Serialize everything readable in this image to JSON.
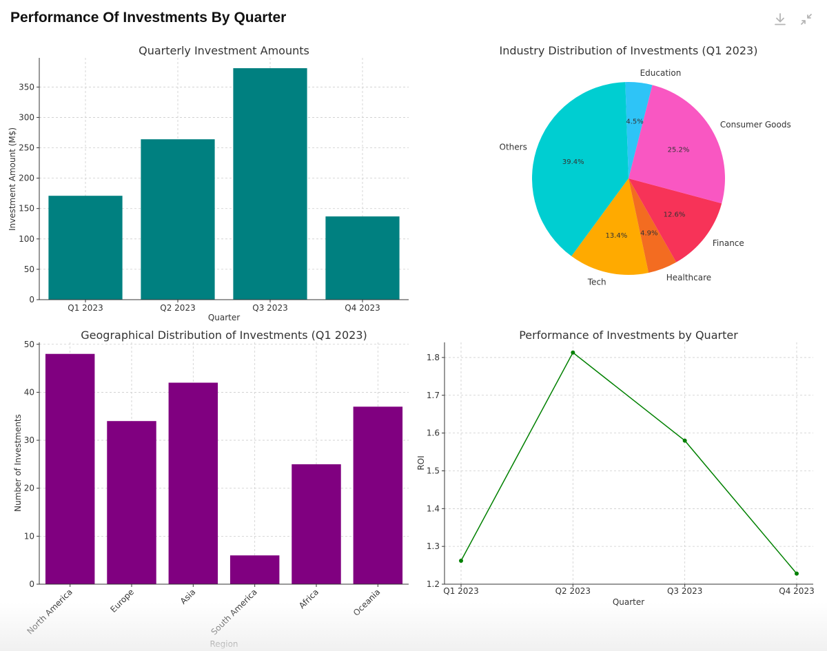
{
  "header": {
    "title": "Performance Of Investments By Quarter",
    "download_icon": "download-icon",
    "collapse_icon": "collapse-icon"
  },
  "colors": {
    "bar1": "#008080",
    "bar3": "#800080",
    "line": "#008000",
    "grid": "#cccccc",
    "axis": "#333333",
    "text": "#333333",
    "pie": [
      "#00CED1",
      "#FFAA00",
      "#F36C21",
      "#F73358",
      "#F957C2",
      "#2EC4F7"
    ]
  },
  "chart_data": [
    {
      "type": "bar",
      "title": "Quarterly Investment Amounts",
      "xlabel": "Quarter",
      "ylabel": "Investment Amount (M$)",
      "categories": [
        "Q1 2023",
        "Q2 2023",
        "Q3 2023",
        "Q4 2023"
      ],
      "values": [
        171,
        264,
        381,
        137
      ],
      "ylim": [
        0,
        398
      ],
      "yticks": [
        0,
        50,
        100,
        150,
        200,
        250,
        300,
        350
      ]
    },
    {
      "type": "pie",
      "title": "Industry Distribution of Investments (Q1 2023)",
      "labels": [
        "Others",
        "Tech",
        "Healthcare",
        "Finance",
        "Consumer Goods",
        "Education"
      ],
      "values": [
        39.4,
        13.4,
        4.9,
        12.6,
        25.2,
        4.5
      ],
      "pct_labels": [
        "39.4%",
        "13.4%",
        "4.9%",
        "12.6%",
        "25.2%",
        "4.5%"
      ]
    },
    {
      "type": "bar",
      "title": "Geographical Distribution of Investments (Q1 2023)",
      "xlabel": "Region",
      "ylabel": "Number of Investments",
      "categories": [
        "North America",
        "Europe",
        "Asia",
        "South America",
        "Africa",
        "Oceania"
      ],
      "values": [
        48,
        34,
        42,
        6,
        25,
        37
      ],
      "ylim": [
        0,
        50.4
      ],
      "yticks": [
        0,
        10,
        20,
        30,
        40,
        50
      ]
    },
    {
      "type": "line",
      "title": "Performance of Investments by Quarter",
      "xlabel": "Quarter",
      "ylabel": "ROI",
      "x": [
        "Q1 2023",
        "Q2 2023",
        "Q3 2023",
        "Q4 2023"
      ],
      "values": [
        1.262,
        1.813,
        1.58,
        1.228
      ],
      "ylim": [
        1.2,
        1.84
      ],
      "yticks": [
        "1.2",
        "1.3",
        "1.4",
        "1.5",
        "1.6",
        "1.7",
        "1.8"
      ]
    }
  ]
}
